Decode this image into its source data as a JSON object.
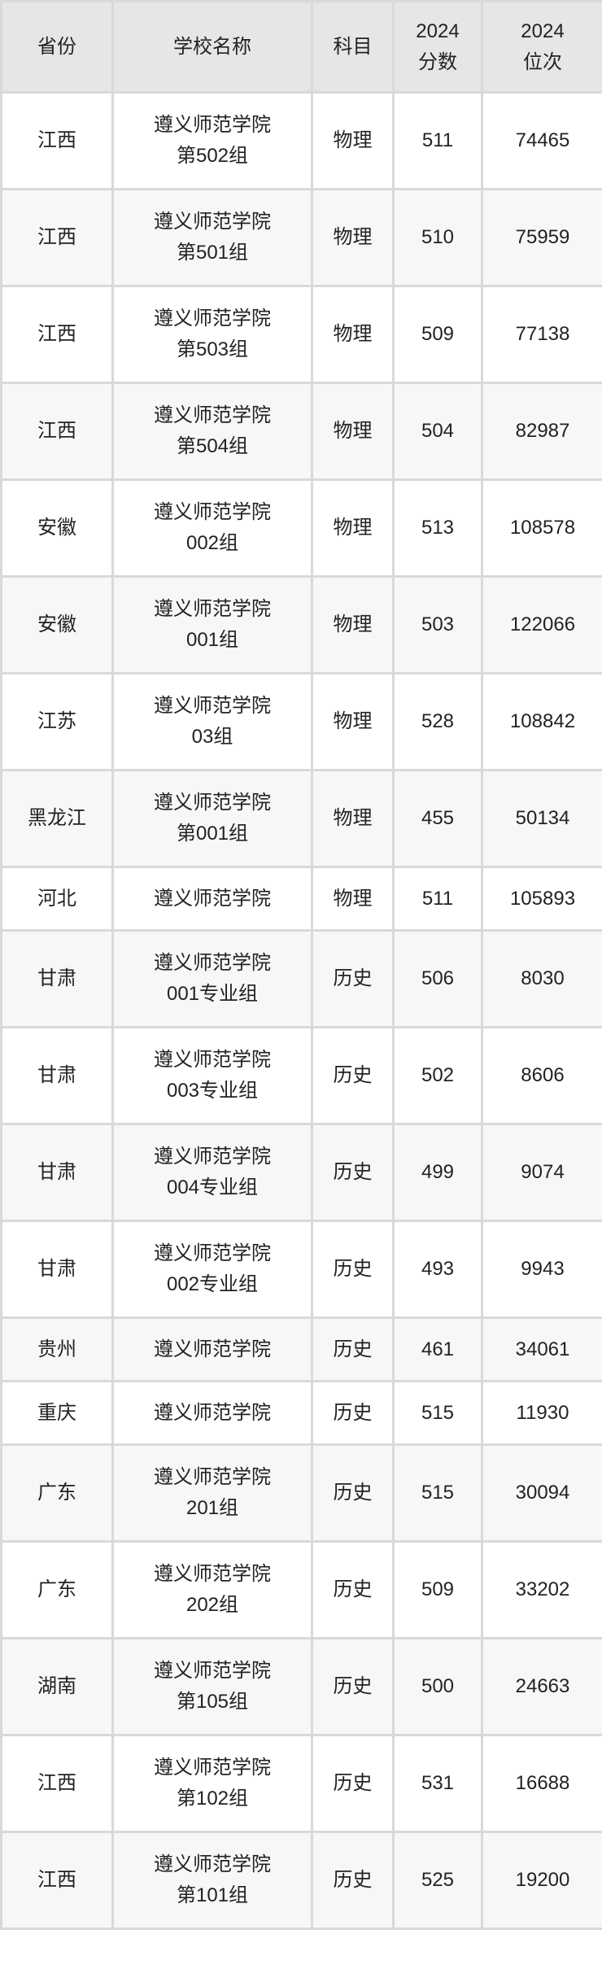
{
  "header": [
    "省份",
    "学校名称",
    "科目",
    "2024\n分数",
    "2024\n位次"
  ],
  "header_lines": [
    [
      "省份"
    ],
    [
      "学校名称"
    ],
    [
      "科目"
    ],
    [
      "2024",
      "分数"
    ],
    [
      "2024",
      "位次"
    ]
  ],
  "rows": [
    {
      "province": "江西",
      "school": [
        "遵义师范学院",
        "第502组"
      ],
      "subject": "物理",
      "score": "511",
      "rank": "74465"
    },
    {
      "province": "江西",
      "school": [
        "遵义师范学院",
        "第501组"
      ],
      "subject": "物理",
      "score": "510",
      "rank": "75959"
    },
    {
      "province": "江西",
      "school": [
        "遵义师范学院",
        "第503组"
      ],
      "subject": "物理",
      "score": "509",
      "rank": "77138"
    },
    {
      "province": "江西",
      "school": [
        "遵义师范学院",
        "第504组"
      ],
      "subject": "物理",
      "score": "504",
      "rank": "82987"
    },
    {
      "province": "安徽",
      "school": [
        "遵义师范学院",
        "002组"
      ],
      "subject": "物理",
      "score": "513",
      "rank": "108578"
    },
    {
      "province": "安徽",
      "school": [
        "遵义师范学院",
        "001组"
      ],
      "subject": "物理",
      "score": "503",
      "rank": "122066"
    },
    {
      "province": "江苏",
      "school": [
        "遵义师范学院",
        "03组"
      ],
      "subject": "物理",
      "score": "528",
      "rank": "108842"
    },
    {
      "province": "黑龙江",
      "school": [
        "遵义师范学院",
        "第001组"
      ],
      "subject": "物理",
      "score": "455",
      "rank": "50134"
    },
    {
      "province": "河北",
      "school": [
        "遵义师范学院"
      ],
      "subject": "物理",
      "score": "511",
      "rank": "105893"
    },
    {
      "province": "甘肃",
      "school": [
        "遵义师范学院",
        "001专业组"
      ],
      "subject": "历史",
      "score": "506",
      "rank": "8030"
    },
    {
      "province": "甘肃",
      "school": [
        "遵义师范学院",
        "003专业组"
      ],
      "subject": "历史",
      "score": "502",
      "rank": "8606"
    },
    {
      "province": "甘肃",
      "school": [
        "遵义师范学院",
        "004专业组"
      ],
      "subject": "历史",
      "score": "499",
      "rank": "9074"
    },
    {
      "province": "甘肃",
      "school": [
        "遵义师范学院",
        "002专业组"
      ],
      "subject": "历史",
      "score": "493",
      "rank": "9943"
    },
    {
      "province": "贵州",
      "school": [
        "遵义师范学院"
      ],
      "subject": "历史",
      "score": "461",
      "rank": "34061"
    },
    {
      "province": "重庆",
      "school": [
        "遵义师范学院"
      ],
      "subject": "历史",
      "score": "515",
      "rank": "11930"
    },
    {
      "province": "广东",
      "school": [
        "遵义师范学院",
        "201组"
      ],
      "subject": "历史",
      "score": "515",
      "rank": "30094"
    },
    {
      "province": "广东",
      "school": [
        "遵义师范学院",
        "202组"
      ],
      "subject": "历史",
      "score": "509",
      "rank": "33202"
    },
    {
      "province": "湖南",
      "school": [
        "遵义师范学院",
        "第105组"
      ],
      "subject": "历史",
      "score": "500",
      "rank": "24663"
    },
    {
      "province": "江西",
      "school": [
        "遵义师范学院",
        "第102组"
      ],
      "subject": "历史",
      "score": "531",
      "rank": "16688"
    },
    {
      "province": "江西",
      "school": [
        "遵义师范学院",
        "第101组"
      ],
      "subject": "历史",
      "score": "525",
      "rank": "19200"
    }
  ]
}
